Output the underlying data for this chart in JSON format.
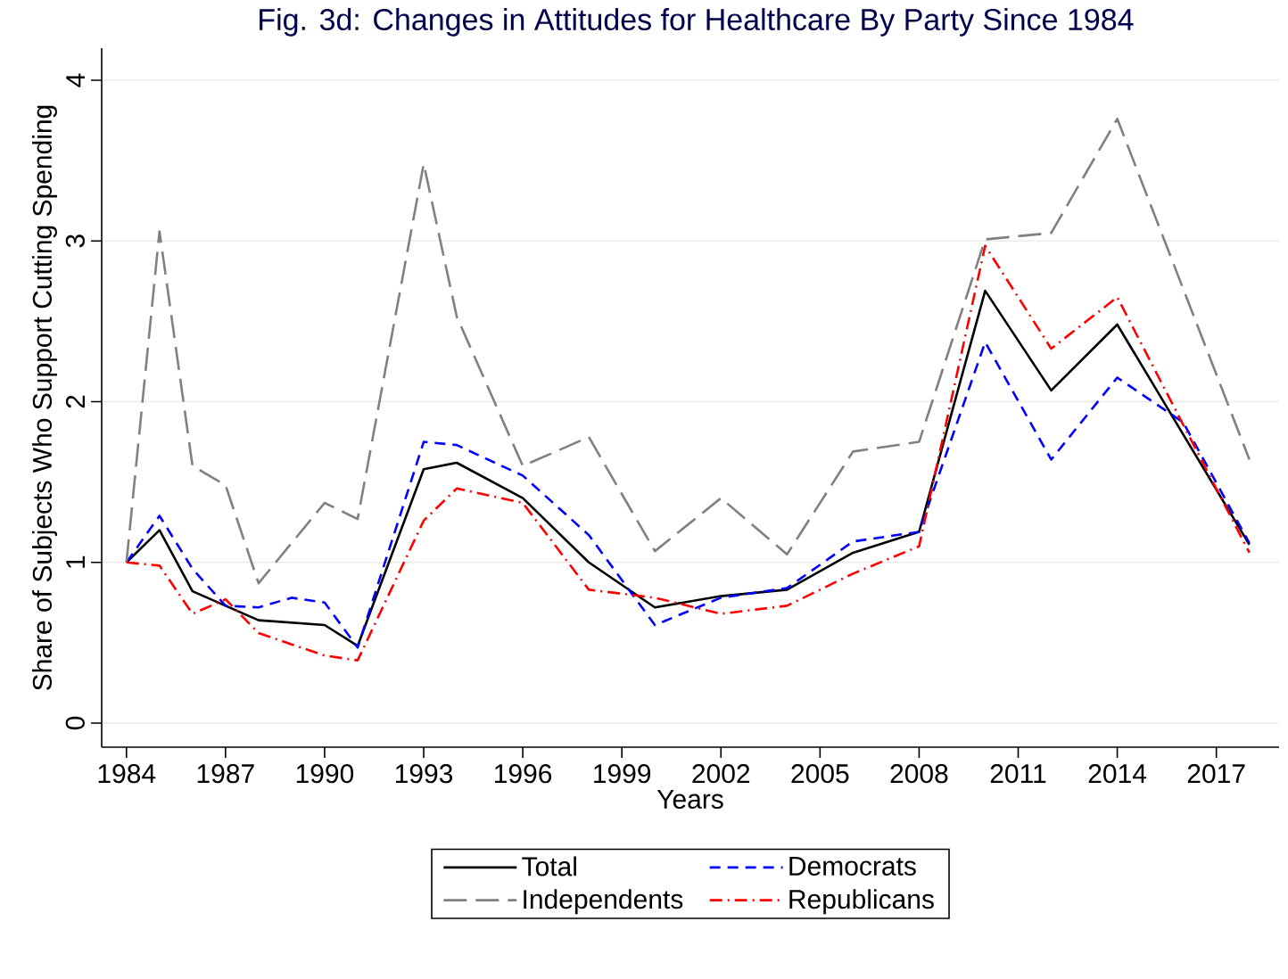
{
  "chart_data": {
    "type": "line",
    "title": "Fig. 3d: Changes in Attitudes for Healthcare By Party Since 1984",
    "xlabel": "Years",
    "ylabel": "Share of Subjects Who Support Cutting Spending",
    "xlim": [
      1983.25,
      2018.9
    ],
    "ylim": [
      -0.15,
      4.2
    ],
    "xticks": [
      1984,
      1987,
      1990,
      1993,
      1996,
      1999,
      2002,
      2005,
      2008,
      2011,
      2014,
      2017
    ],
    "yticks": [
      0,
      1,
      2,
      3,
      4
    ],
    "grid": "y",
    "legend": "bottom",
    "series": [
      {
        "name": "Total",
        "color": "#000000",
        "line_style": "solid",
        "x": [
          1984,
          1985,
          1986,
          1987,
          1988,
          1990,
          1991,
          1993,
          1994,
          1996,
          1998,
          2000,
          2002,
          2004,
          2006,
          2008,
          2010,
          2012,
          2014,
          2018
        ],
        "values": [
          1.0,
          1.2,
          0.82,
          0.73,
          0.64,
          0.61,
          0.48,
          1.58,
          1.62,
          1.4,
          1.0,
          0.72,
          0.79,
          0.83,
          1.06,
          1.19,
          2.69,
          2.07,
          2.48,
          1.11
        ]
      },
      {
        "name": "Democrats",
        "color": "#0000ff",
        "line_style": "dashed",
        "x": [
          1984,
          1985,
          1986,
          1987,
          1988,
          1989,
          1990,
          1991,
          1993,
          1994,
          1996,
          1998,
          2000,
          2002,
          2004,
          2006,
          2008,
          2010,
          2012,
          2014,
          2016,
          2018
        ],
        "values": [
          1.0,
          1.29,
          0.96,
          0.73,
          0.72,
          0.78,
          0.75,
          0.47,
          1.75,
          1.73,
          1.54,
          1.17,
          0.61,
          0.78,
          0.84,
          1.13,
          1.19,
          2.37,
          1.64,
          2.15,
          1.87,
          1.12
        ]
      },
      {
        "name": "Independents",
        "color": "#808080",
        "line_style": "longdashed",
        "x": [
          1984,
          1985,
          1986,
          1987,
          1988,
          1990,
          1991,
          1993,
          1994,
          1996,
          1998,
          2000,
          2002,
          2004,
          2006,
          2008,
          2010,
          2012,
          2014,
          2018
        ],
        "values": [
          1.0,
          3.06,
          1.6,
          1.48,
          0.87,
          1.37,
          1.27,
          3.48,
          2.53,
          1.6,
          1.78,
          1.07,
          1.4,
          1.05,
          1.69,
          1.75,
          3.01,
          3.05,
          3.76,
          1.64
        ]
      },
      {
        "name": "Republicans",
        "color": "#ff0000",
        "line_style": "dashdot",
        "x": [
          1984,
          1985,
          1986,
          1987,
          1988,
          1989,
          1990,
          1991,
          1993,
          1994,
          1996,
          1998,
          2000,
          2002,
          2004,
          2006,
          2008,
          2010,
          2012,
          2014,
          2018
        ],
        "values": [
          1.0,
          0.98,
          0.68,
          0.77,
          0.56,
          0.49,
          0.42,
          0.39,
          1.26,
          1.46,
          1.37,
          0.83,
          0.78,
          0.68,
          0.73,
          0.93,
          1.1,
          2.97,
          2.33,
          2.65,
          1.06
        ]
      }
    ]
  }
}
